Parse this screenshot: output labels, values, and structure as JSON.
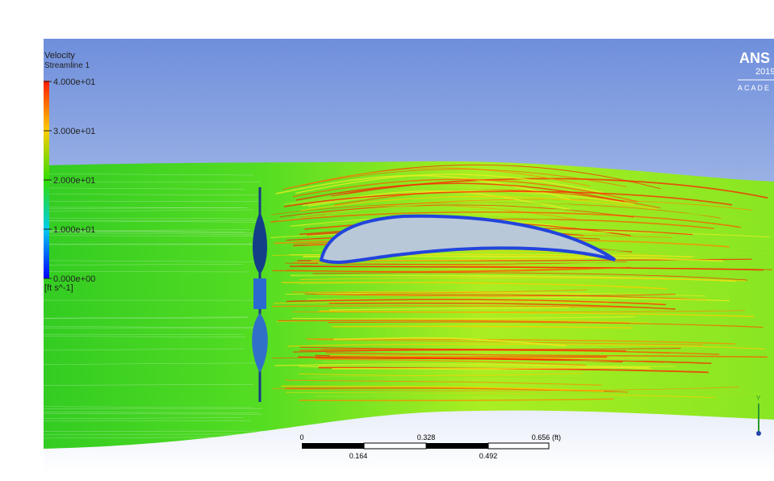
{
  "legend": {
    "title": "Velocity",
    "subtitle": "Streamline 1",
    "labels": [
      "4.000e+01",
      "3.000e+01",
      "2.000e+01",
      "1.000e+01",
      "0.000e+00"
    ],
    "unit": "[ft s^-1]"
  },
  "scale_bar": {
    "top_labels": [
      "0",
      "0.328",
      "0.656"
    ],
    "unit": "(ft)",
    "bottom_labels": [
      "0.164",
      "0.492"
    ]
  },
  "logo": {
    "brand": "ANS",
    "year": "2019",
    "edition": "ACADE"
  },
  "axis_triad": {
    "y_label": "Y"
  }
}
